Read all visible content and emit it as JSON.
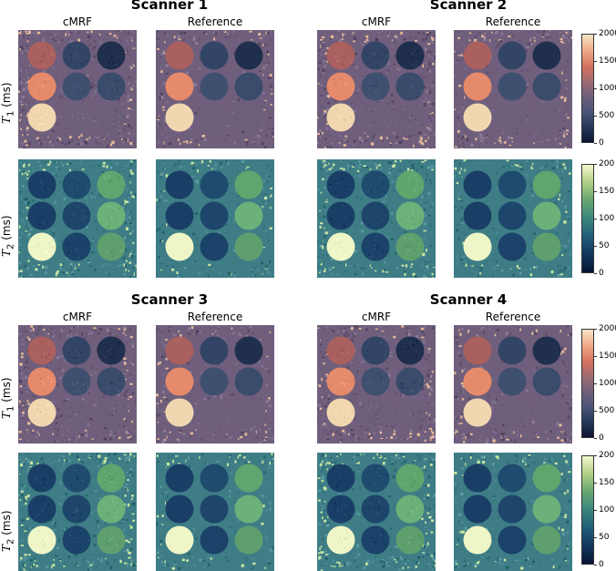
{
  "scanners": [
    {
      "title": "Scanner 1"
    },
    {
      "title": "Scanner 2"
    },
    {
      "title": "Scanner 3"
    },
    {
      "title": "Scanner 4"
    }
  ],
  "column_labels": {
    "cmrf": "cMRF",
    "reference": "Reference"
  },
  "row_labels": {
    "t1": {
      "symbol": "T",
      "sub": "1",
      "unit": " (ms)"
    },
    "t2": {
      "symbol": "T",
      "sub": "2",
      "unit": " (ms)"
    }
  },
  "colorbars": {
    "t1": {
      "ticks": [
        "2000",
        "1500",
        "1000",
        "500",
        "0"
      ],
      "colors": [
        "#0b1530",
        "#6e5f7a",
        "#d3715f",
        "#f7e6c6"
      ]
    },
    "t2": {
      "ticks": [
        "200",
        "150",
        "100",
        "50",
        "0"
      ],
      "colors": [
        "#061433",
        "#23627a",
        "#6ba86f",
        "#f3f8cf"
      ]
    }
  },
  "colors": {
    "t1_background": "#6f5f7c",
    "t1_vials": [
      "#a9605e",
      "#334566",
      "#1f2f4d",
      "#e58a6a",
      "#3f4f70",
      "#3a4b6c",
      "#f0d7b0",
      "#6c5f7a",
      "#6c5f7a"
    ],
    "t2_background": "#3e7d86",
    "t2_vials": [
      "#1a3f66",
      "#1f4b6e",
      "#5fa56e",
      "#1a3f66",
      "#1d466a",
      "#6cb07a",
      "#eef5c6",
      "#1b4268",
      "#5f9f6e"
    ]
  }
}
